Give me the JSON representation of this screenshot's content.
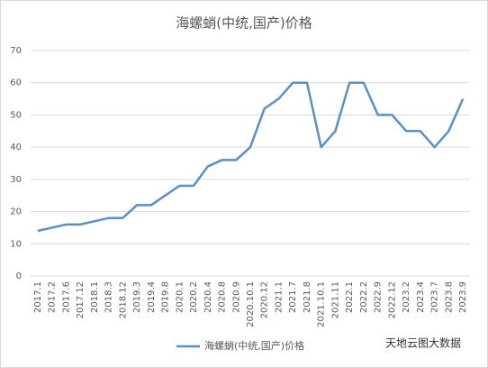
{
  "chart_data": {
    "type": "line",
    "title": "海螺蛸(中统,国产)价格",
    "categories": [
      "2017.1",
      "2017.2",
      "2017.6",
      "2017.12",
      "2018.1",
      "2018.3",
      "2018.12",
      "2019.3",
      "2019.4",
      "2019.8",
      "2020.1",
      "2020.2",
      "2020.4",
      "2020.8",
      "2020.9",
      "2020.10.1",
      "2020.12",
      "2021.1",
      "2021.7",
      "2021.8",
      "2021.10.1",
      "2021.11",
      "2022.1",
      "2022.2",
      "2022.9",
      "2022.12",
      "2023.2",
      "2023.4",
      "2023.7",
      "2023.8",
      "2023.9"
    ],
    "series": [
      {
        "name": "海螺蛸(中统,国产)价格",
        "color": "#5b8fc3",
        "values": [
          14,
          15,
          16,
          16,
          17,
          18,
          18,
          22,
          22,
          25,
          28,
          28,
          34,
          36,
          36,
          40,
          52,
          55,
          60,
          60,
          40,
          45,
          60,
          60,
          50,
          50,
          45,
          45,
          40,
          45,
          55
        ]
      }
    ],
    "ylim": [
      0,
      70
    ],
    "yticks": [
      0,
      10,
      20,
      30,
      40,
      50,
      60,
      70
    ],
    "grid": true,
    "legend": "bottom",
    "watermark": "天地云图大数据"
  }
}
